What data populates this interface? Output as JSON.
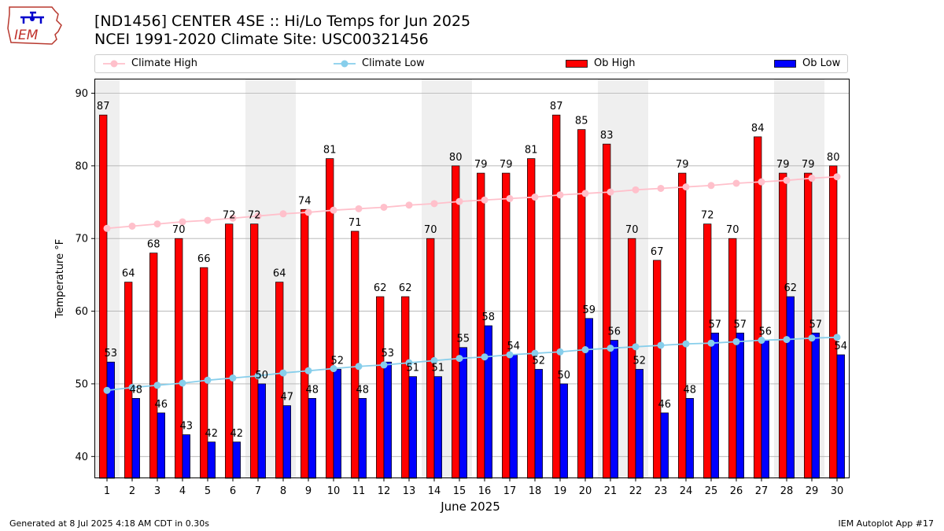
{
  "logo_text": "IEM",
  "title_line1": "[ND1456] CENTER 4SE :: Hi/Lo Temps for Jun 2025",
  "title_line2": "NCEI 1991-2020 Climate Site: USC00321456",
  "footer_left": "Generated at 8 Jul 2025 4:18 AM CDT in 0.30s",
  "footer_right": "IEM Autoplot App #17",
  "colors": {
    "ob_high": "#ff0000",
    "ob_low": "#0000ff",
    "climate_high": "#ffc0cb",
    "climate_low": "#87ceeb",
    "weekend_shade": "#efefef",
    "grid": "#b0b0b0"
  },
  "chart_data": {
    "type": "bar",
    "xlabel": "June 2025",
    "ylabel": "Temperature °F",
    "ylim": [
      37,
      92
    ],
    "yticks": [
      40,
      50,
      60,
      70,
      80,
      90
    ],
    "grid": "horizontal",
    "legend_position": "top",
    "shaded_days": [
      1,
      7,
      8,
      14,
      15,
      21,
      22,
      28,
      29
    ],
    "categories": [
      1,
      2,
      3,
      4,
      5,
      6,
      7,
      8,
      9,
      10,
      11,
      12,
      13,
      14,
      15,
      16,
      17,
      18,
      19,
      20,
      21,
      22,
      23,
      24,
      25,
      26,
      27,
      28,
      29,
      30
    ],
    "series": [
      {
        "name": "Ob High",
        "kind": "bar",
        "values": [
          87,
          64,
          68,
          70,
          66,
          72,
          72,
          64,
          74,
          81,
          71,
          62,
          62,
          70,
          80,
          79,
          79,
          81,
          87,
          85,
          83,
          70,
          67,
          79,
          72,
          70,
          84,
          79,
          79,
          80
        ]
      },
      {
        "name": "Ob Low",
        "kind": "bar",
        "values": [
          53,
          48,
          46,
          43,
          42,
          42,
          50,
          47,
          48,
          52,
          48,
          53,
          51,
          51,
          55,
          58,
          54,
          52,
          50,
          59,
          56,
          52,
          46,
          48,
          57,
          57,
          56,
          62,
          57,
          54
        ]
      },
      {
        "name": "Climate High",
        "kind": "line",
        "values": [
          71.4,
          71.7,
          72.0,
          72.3,
          72.5,
          72.8,
          73.1,
          73.4,
          73.6,
          73.9,
          74.1,
          74.3,
          74.6,
          74.8,
          75.1,
          75.3,
          75.5,
          75.7,
          76.0,
          76.2,
          76.4,
          76.7,
          76.9,
          77.1,
          77.3,
          77.6,
          77.8,
          78.0,
          78.3,
          78.5
        ]
      },
      {
        "name": "Climate Low",
        "kind": "line",
        "values": [
          49.1,
          49.5,
          49.8,
          50.1,
          50.5,
          50.8,
          51.1,
          51.5,
          51.8,
          52.1,
          52.4,
          52.6,
          52.9,
          53.2,
          53.5,
          53.7,
          54.0,
          54.2,
          54.4,
          54.7,
          54.9,
          55.1,
          55.3,
          55.5,
          55.6,
          55.8,
          56.0,
          56.1,
          56.3,
          56.4
        ]
      }
    ]
  }
}
